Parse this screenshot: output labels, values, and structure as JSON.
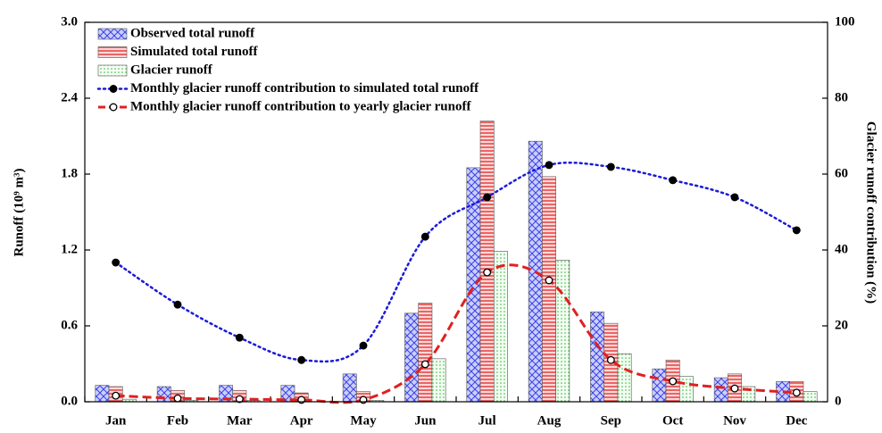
{
  "chart_data": {
    "type": "bar",
    "categories": [
      "Jan",
      "Feb",
      "Mar",
      "Apr",
      "May",
      "Jun",
      "Jul",
      "Aug",
      "Sep",
      "Oct",
      "Nov",
      "Dec"
    ],
    "ylabel": "Runoff (10⁹ m³)",
    "y2label": "Glacier runoff contribution (%)",
    "ylim": [
      0,
      3.0
    ],
    "yticks": [
      {
        "value": 0,
        "label": "0.0"
      },
      0.6,
      1.2,
      1.8,
      2.4,
      {
        "value": 3,
        "label": "3.0"
      }
    ],
    "y2lim": [
      0,
      100
    ],
    "y2ticks": [
      0,
      20,
      40,
      60,
      80,
      100
    ],
    "legend": "upper left",
    "series": [
      {
        "name": "Observed total runoff",
        "type": "bar",
        "color": "#4040e0",
        "values": [
          0.13,
          0.12,
          0.13,
          0.13,
          0.22,
          0.7,
          1.85,
          2.06,
          0.71,
          0.26,
          0.19,
          0.16
        ]
      },
      {
        "name": "Simulated total runoff",
        "type": "bar",
        "color": "#e02828",
        "values": [
          0.12,
          0.09,
          0.09,
          0.07,
          0.08,
          0.78,
          2.22,
          1.78,
          0.62,
          0.33,
          0.22,
          0.16
        ]
      },
      {
        "name": "Glacier runoff",
        "type": "bar",
        "color": "#40b040",
        "values": [
          0.02,
          0.01,
          0.01,
          0.0,
          0.01,
          0.34,
          1.19,
          1.12,
          0.38,
          0.2,
          0.12,
          0.08
        ]
      },
      {
        "name": "Monthly glacier runoff contribution to simulated total runoff",
        "type": "line",
        "axis": "y2",
        "color": "#1a1ad8",
        "values": [
          36.7,
          25.6,
          16.9,
          11.0,
          14.8,
          43.5,
          53.9,
          62.4,
          61.9,
          58.4,
          53.9,
          45.2
        ]
      },
      {
        "name": "Monthly glacier runoff contribution to yearly glacier runoff",
        "type": "line",
        "axis": "y2",
        "color": "#e02020",
        "values": [
          1.6,
          0.9,
          0.7,
          0.5,
          0.5,
          9.9,
          34.1,
          32.0,
          11.0,
          5.4,
          3.5,
          2.4
        ]
      }
    ]
  }
}
